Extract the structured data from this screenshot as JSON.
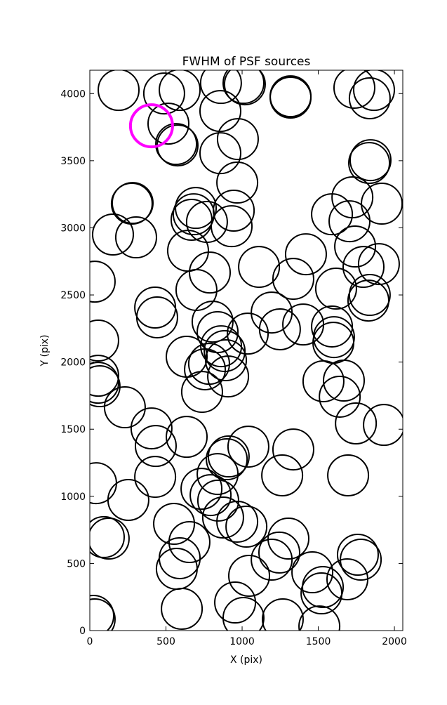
{
  "chart_data": {
    "type": "scatter",
    "title": "FWHM of PSF sources",
    "x_label": "X (pix)",
    "y_label": "Y (pix)",
    "xlim": [
      0,
      2055
    ],
    "ylim": [
      0,
      4174
    ],
    "xticks": [
      0,
      500,
      1000,
      1500,
      2000
    ],
    "yticks": [
      0,
      500,
      1000,
      1500,
      2000,
      2500,
      3000,
      3500,
      4000
    ],
    "grid": false,
    "series": [
      {
        "color": "#000000",
        "x": [
          189,
          488,
          590,
          516,
          576,
          567,
          861,
          1018,
          1009,
          857,
          972,
          857,
          968,
          1318,
          1318,
          1737,
          1866,
          1838,
          1843,
          1834,
          281,
          276,
          152,
          304,
          696,
          682,
          668,
          769,
          945,
          931,
          645,
          788,
          700,
          32,
          55,
          429,
          442,
          1111,
          1419,
          1336,
          1590,
          1724,
          1705,
          1917,
          1742,
          1797,
          1898,
          1838,
          1829,
          1617,
          1194,
          1248,
          1401,
          1590,
          1603,
          1599,
          1037,
          806,
          839,
          862,
          885,
          894,
          783,
          756,
          908,
          636,
          737,
          55,
          64,
          55,
          230,
          405,
          433,
          636,
          1534,
          1668,
          1641,
          1747,
          1931,
          1041,
          1336,
          912,
          899,
          839,
          1263,
          1696,
          41,
          253,
          429,
          733,
          793,
          843,
          875,
          968,
          1028,
          553,
          654,
          92,
          124,
          590,
          571,
          1304,
          1244,
          1194,
          1046,
          954,
          1009,
          604,
          23,
          32,
          1267,
          1461,
          1521,
          1530,
          1507,
          1691,
          1760,
          1779
        ],
        "values": [
          4027,
          4001,
          4027,
          3776,
          3614,
          3624,
          4079,
          4069,
          4079,
          3870,
          3661,
          3556,
          3337,
          3980,
          3970,
          4043,
          4027,
          3965,
          3504,
          3483,
          3185,
          3180,
          2950,
          2929,
          3148,
          3101,
          3060,
          3044,
          3128,
          3012,
          2829,
          2667,
          2537,
          2599,
          2160,
          2406,
          2333,
          2709,
          2803,
          2620,
          3101,
          3227,
          3049,
          3180,
          2861,
          2709,
          2730,
          2500,
          2458,
          2547,
          2369,
          2244,
          2280,
          2265,
          2186,
          2144,
          2212,
          2301,
          2223,
          2118,
          2082,
          2014,
          1987,
          1946,
          1893,
          2040,
          1778,
          1898,
          1820,
          1846,
          1663,
          1506,
          1375,
          1443,
          1857,
          1862,
          1742,
          1543,
          1532,
          1370,
          1349,
          1297,
          1276,
          1166,
          1156,
          1156,
          1098,
          973,
          1145,
          1056,
          1009,
          968,
          842,
          811,
          774,
          795,
          659,
          696,
          685,
          539,
          460,
          685,
          581,
          528,
          408,
          209,
          94,
          162,
          110,
          84,
          84,
          434,
          277,
          324,
          31,
          382,
          565,
          528
        ]
      },
      {
        "color": "#ff00ff",
        "x": [
          405
        ],
        "values": [
          3760
        ]
      }
    ]
  }
}
